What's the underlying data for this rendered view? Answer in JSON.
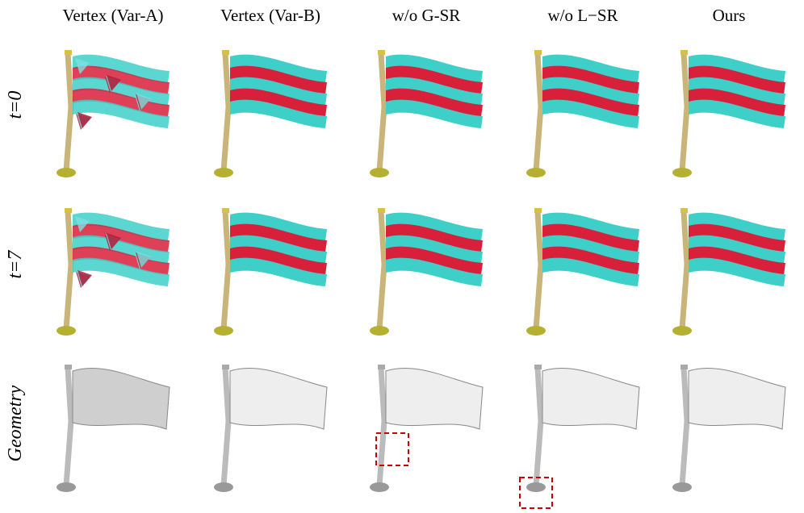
{
  "header": {
    "columns": [
      "Vertex (Var-A)",
      "Vertex (Var-B)",
      "w/o G-SR",
      "w/o L−SR",
      "Ours"
    ]
  },
  "rows": {
    "labels": [
      "t=0",
      "t=7",
      "Geometry"
    ]
  }
}
